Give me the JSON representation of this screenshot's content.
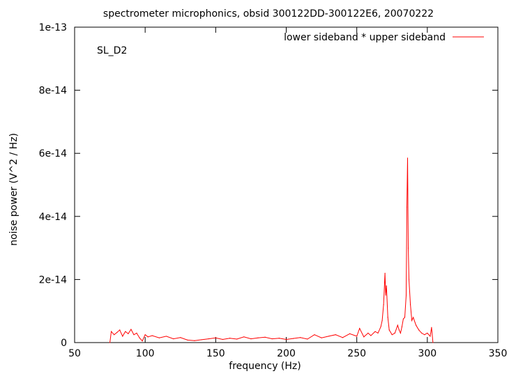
{
  "chart_data": {
    "type": "line",
    "title": "spectrometer microphonics, obsid 300122DD-300122E6, 20070222",
    "xlabel": "frequency (Hz)",
    "ylabel": "noise power (V^2 / Hz)",
    "annotation": "SL_D2",
    "xlim": [
      50,
      350
    ],
    "ylim": [
      0,
      1e-13
    ],
    "xticks": [
      50,
      100,
      150,
      200,
      250,
      300,
      350
    ],
    "yticks": [
      0,
      2e-14,
      4e-14,
      6e-14,
      8e-14,
      1e-13
    ],
    "xtick_labels": [
      "50",
      "100",
      "150",
      "200",
      "250",
      "300",
      "350"
    ],
    "ytick_labels": [
      "0",
      "2e-14",
      "4e-14",
      "6e-14",
      "8e-14",
      "1e-13"
    ],
    "grid": false,
    "legend_position": "top-right",
    "series": [
      {
        "name": "lower sideband * upper sideband",
        "color": "#ff0000",
        "x": [
          75,
          76,
          78,
          80,
          82,
          84,
          86,
          88,
          90,
          92,
          94,
          96,
          98,
          100,
          102,
          105,
          110,
          115,
          120,
          125,
          130,
          135,
          140,
          145,
          150,
          155,
          160,
          165,
          170,
          175,
          180,
          185,
          190,
          195,
          200,
          205,
          210,
          215,
          220,
          225,
          230,
          235,
          240,
          245,
          250,
          252,
          255,
          258,
          260,
          263,
          265,
          267,
          268,
          269,
          270,
          270.5,
          271,
          272,
          273,
          275,
          277,
          279,
          280,
          281,
          282,
          283,
          284,
          285,
          285.5,
          286,
          286.5,
          287,
          288,
          289,
          290,
          292,
          294,
          296,
          298,
          300,
          302,
          303,
          304
        ],
        "y": [
          0,
          3.5e-15,
          2.5e-15,
          3.2e-15,
          4e-15,
          2e-15,
          3.5e-15,
          2.8e-15,
          4.2e-15,
          2.5e-15,
          3e-15,
          1.5e-15,
          5e-16,
          2.5e-15,
          1.8e-15,
          2.2e-15,
          1.5e-15,
          2e-15,
          1.2e-15,
          1.6e-15,
          8e-16,
          6e-16,
          9e-16,
          1.2e-15,
          1.5e-15,
          1e-15,
          1.4e-15,
          1.1e-15,
          1.8e-15,
          1.2e-15,
          1.5e-15,
          1.7e-15,
          1.2e-15,
          1.4e-15,
          1e-15,
          1.3e-15,
          1.6e-15,
          1.1e-15,
          2.5e-15,
          1.5e-15,
          2e-15,
          2.5e-15,
          1.6e-15,
          2.8e-15,
          2e-15,
          4.5e-15,
          1.8e-15,
          3e-15,
          2.2e-15,
          3.5e-15,
          3e-15,
          5e-15,
          7e-15,
          1.2e-14,
          2.2e-14,
          1.5e-14,
          1.8e-14,
          8e-15,
          4e-15,
          2.5e-15,
          3e-15,
          5.5e-15,
          4e-15,
          3e-15,
          5e-15,
          7.5e-15,
          8e-15,
          1.5e-14,
          4.3e-14,
          5.85e-14,
          3e-14,
          2e-14,
          1.2e-14,
          7e-15,
          8e-15,
          5.5e-15,
          4e-15,
          3e-15,
          2.5e-15,
          3e-15,
          2e-15,
          4.8e-15,
          0
        ]
      }
    ]
  }
}
